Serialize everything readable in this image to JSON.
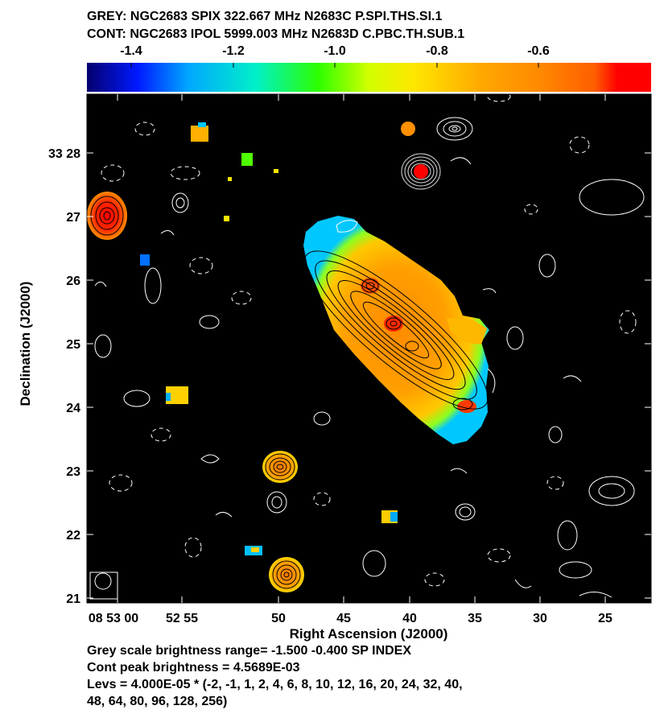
{
  "header": {
    "line1": "GREY: NGC2683  SPIX  322.667 MHz  N2683C P.SPI.THS.SI.1",
    "line2": "CONT: NGC2683  IPOL  5999.003 MHz  N2683D C.PBC.TH.SUB.1"
  },
  "footer": {
    "line1": "Grey scale brightness range= -1.500 -0.400 SP INDEX",
    "line2": "Cont peak brightness = 4.5689E-03",
    "line3": "Levs = 4.000E-05 * (-2, -1, 1, 2, 4, 6, 8, 10, 12, 16, 20, 24, 32, 40,",
    "line4": "48, 64, 80, 96, 128, 256)"
  },
  "chart_data": {
    "type": "heatmap",
    "xlabel": "Right Ascension (J2000)",
    "ylabel": "Declination (J2000)",
    "x_ticks": [
      "08 53 00",
      "52 55",
      "50",
      "45",
      "40",
      "35",
      "30",
      "25"
    ],
    "y_ticks": [
      "33 28",
      "27",
      "26",
      "25",
      "24",
      "23",
      "22",
      "21"
    ],
    "colorbar": {
      "ticks": [
        "-1.4",
        "-1.2",
        "-1.0",
        "-0.8",
        "-0.6"
      ],
      "range": [
        -1.5,
        -0.4
      ],
      "colors": [
        "#05006e",
        "#0019ff",
        "#00a7ff",
        "#00f0c8",
        "#2cff00",
        "#d2ff00",
        "#ffe600",
        "#ffa800",
        "#ff8a00",
        "#ff5e00",
        "#ff0000"
      ]
    },
    "grey_range": [
      -1.5,
      -0.4
    ],
    "grey_unit": "SP INDEX",
    "contour_peak": "4.5689E-03",
    "contour_base": "4.000E-05",
    "contour_levels": [
      -2,
      -1,
      1,
      2,
      4,
      6,
      8,
      10,
      12,
      16,
      20,
      24,
      32,
      40,
      48,
      64,
      80,
      96,
      128,
      256
    ],
    "sources": [
      {
        "name": "NGC2683",
        "ra": "08 52 41",
        "dec": "33 25 00",
        "spix": -0.65
      },
      {
        "ra": "08 53 01",
        "dec": "33 27 00",
        "spix": -0.4
      },
      {
        "ra": "08 52 39",
        "dec": "33 27 40",
        "spix": -0.4
      },
      {
        "ra": "08 52 40",
        "dec": "33 28 20",
        "spix": -0.7
      },
      {
        "ra": "08 52 50",
        "dec": "33 23 00",
        "spix": -0.7
      },
      {
        "ra": "08 52 49",
        "dec": "33 21 20",
        "spix": -0.6
      },
      {
        "ra": "08 52 56",
        "dec": "33 28 20",
        "spix": -0.75
      },
      {
        "ra": "08 52 57",
        "dec": "33 24 10",
        "spix": -1.0
      },
      {
        "ra": "08 52 43",
        "dec": "33 22 15",
        "spix": -1.1
      },
      {
        "ra": "08 52 52",
        "dec": "33 28 00",
        "spix": -1.0
      },
      {
        "ra": "08 52 51",
        "dec": "33 21 45",
        "spix": -1.2
      },
      {
        "ra": "08 52 59",
        "dec": "33 26 15",
        "spix": -1.3
      }
    ]
  }
}
